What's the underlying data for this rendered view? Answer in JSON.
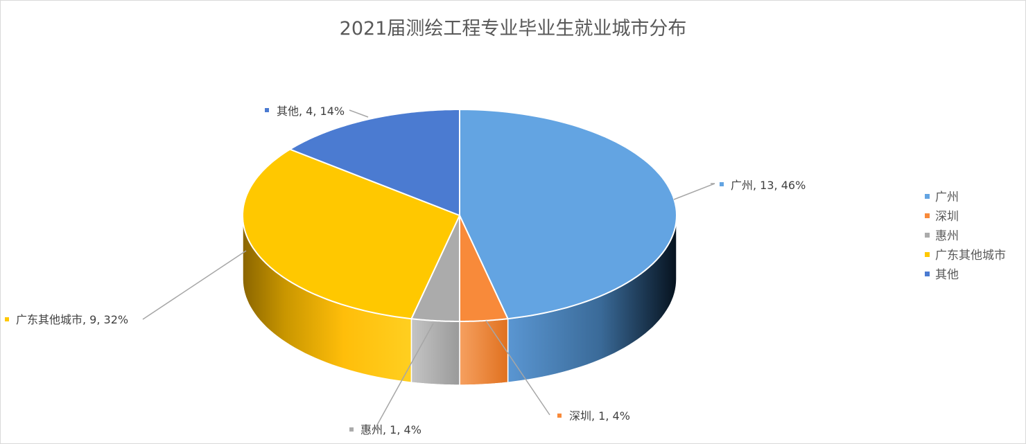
{
  "chart_data": {
    "type": "pie",
    "title": "2021届测绘工程专业毕业生就业城市分布",
    "slices": [
      {
        "name": "广州",
        "value": 13,
        "percent": "46%",
        "color": "#63A4E2"
      },
      {
        "name": "深圳",
        "value": 1,
        "percent": "4%",
        "color": "#F88A3A"
      },
      {
        "name": "惠州",
        "value": 1,
        "percent": "4%",
        "color": "#ABABAB"
      },
      {
        "name": "广东其他城市",
        "value": 9,
        "percent": "32%",
        "color": "#FFC800"
      },
      {
        "name": "其他",
        "value": 4,
        "percent": "14%",
        "color": "#4B7BD1"
      }
    ],
    "data_label_format": "name, value, percent",
    "legend_position": "right",
    "style": "3D pie"
  }
}
